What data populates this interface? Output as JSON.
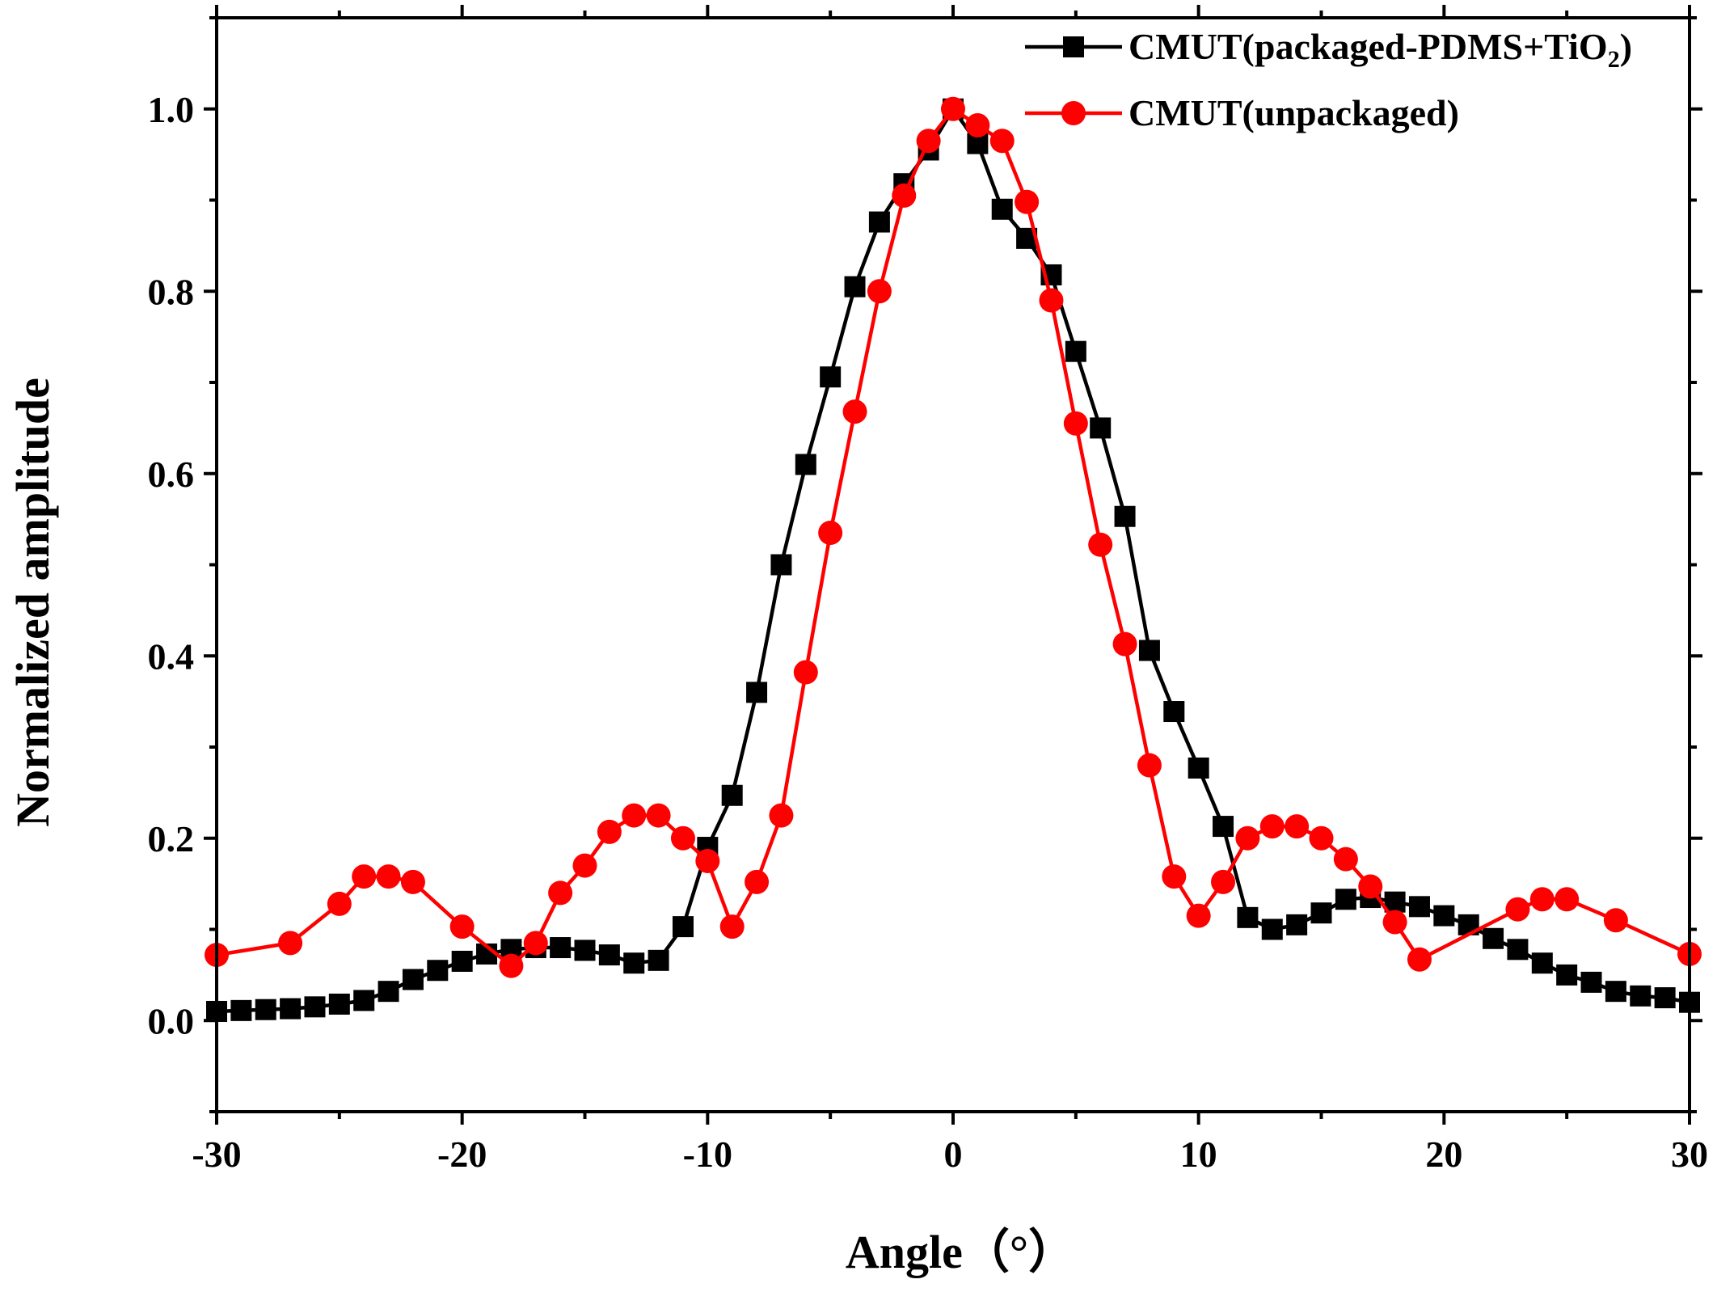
{
  "chart_data": {
    "type": "line",
    "title": "",
    "xlabel": "Angle（°）",
    "ylabel": "Normalized amplitude",
    "xlim": [
      -30,
      30
    ],
    "ylim": [
      -0.1,
      1.1
    ],
    "x_ticks": [
      -30,
      -20,
      -10,
      0,
      10,
      20,
      30
    ],
    "x_tick_labels": [
      "-30",
      "-20",
      "-10",
      "0",
      "10",
      "20",
      "30"
    ],
    "y_ticks": [
      0.0,
      0.2,
      0.4,
      0.6,
      0.8,
      1.0
    ],
    "y_tick_labels": [
      "0.0",
      "0.2",
      "0.4",
      "0.6",
      "0.8",
      "1.0"
    ],
    "grid": false,
    "legend_position": "top-right",
    "series": [
      {
        "name": "CMUT(packaged-PDMS+TiO2)",
        "legend_main": "CMUT(packaged-PDMS+TiO",
        "legend_sub": "2",
        "legend_tail": ")",
        "color": "#000000",
        "marker": "square",
        "x": [
          -30,
          -29,
          -28,
          -27,
          -26,
          -25,
          -24,
          -23,
          -22,
          -21,
          -20,
          -19,
          -18,
          -17,
          -16,
          -15,
          -14,
          -13,
          -12,
          -11,
          -10,
          -9,
          -8,
          -7,
          -6,
          -5,
          -4,
          -3,
          -2,
          -1,
          0,
          1,
          2,
          3,
          4,
          5,
          6,
          7,
          8,
          9,
          10,
          11,
          12,
          13,
          14,
          15,
          16,
          17,
          18,
          19,
          20,
          21,
          22,
          23,
          24,
          25,
          26,
          27,
          28,
          29,
          30
        ],
        "values": [
          0.01,
          0.011,
          0.012,
          0.013,
          0.015,
          0.018,
          0.022,
          0.032,
          0.045,
          0.055,
          0.065,
          0.073,
          0.078,
          0.08,
          0.08,
          0.077,
          0.072,
          0.063,
          0.066,
          0.103,
          0.19,
          0.247,
          0.36,
          0.5,
          0.61,
          0.706,
          0.805,
          0.876,
          0.918,
          0.955,
          1.0,
          0.962,
          0.89,
          0.858,
          0.818,
          0.734,
          0.65,
          0.553,
          0.406,
          0.339,
          0.277,
          0.213,
          0.113,
          0.1,
          0.105,
          0.118,
          0.133,
          0.135,
          0.13,
          0.125,
          0.115,
          0.105,
          0.09,
          0.078,
          0.063,
          0.05,
          0.042,
          0.032,
          0.027,
          0.025,
          0.02
        ]
      },
      {
        "name": "CMUT(unpackaged)",
        "legend_main": "CMUT(unpackaged)",
        "color": "#ff0000",
        "marker": "circle",
        "x": [
          -30,
          -27,
          -25,
          -24,
          -23,
          -22,
          -20,
          -18,
          -17,
          -16,
          -15,
          -14,
          -13,
          -12,
          -11,
          -10,
          -9,
          -8,
          -7,
          -6,
          -5,
          -4,
          -3,
          -2,
          -1,
          0,
          1,
          2,
          3,
          4,
          5,
          6,
          7,
          8,
          9,
          10,
          11,
          12,
          13,
          14,
          15,
          16,
          17,
          18,
          19,
          23,
          24,
          25,
          27,
          30
        ],
        "values": [
          0.072,
          0.085,
          0.128,
          0.158,
          0.158,
          0.152,
          0.103,
          0.06,
          0.085,
          0.14,
          0.17,
          0.207,
          0.225,
          0.225,
          0.2,
          0.175,
          0.103,
          0.152,
          0.225,
          0.382,
          0.535,
          0.668,
          0.8,
          0.905,
          0.965,
          1.0,
          0.982,
          0.965,
          0.898,
          0.79,
          0.655,
          0.522,
          0.413,
          0.28,
          0.158,
          0.115,
          0.152,
          0.2,
          0.213,
          0.213,
          0.2,
          0.177,
          0.147,
          0.108,
          0.067,
          0.122,
          0.133,
          0.133,
          0.11,
          0.073
        ]
      }
    ]
  }
}
